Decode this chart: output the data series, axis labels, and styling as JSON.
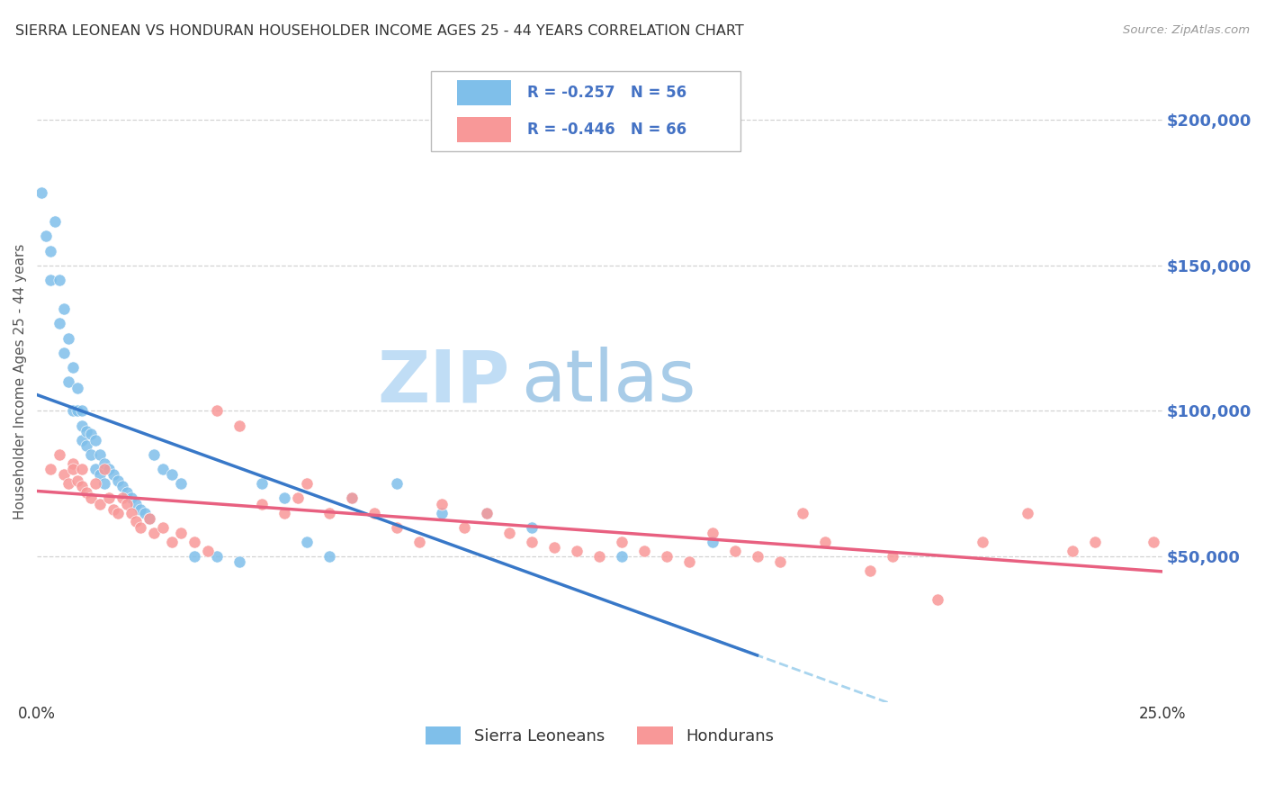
{
  "title": "SIERRA LEONEAN VS HONDURAN HOUSEHOLDER INCOME AGES 25 - 44 YEARS CORRELATION CHART",
  "source": "Source: ZipAtlas.com",
  "ylabel": "Householder Income Ages 25 - 44 years",
  "background_color": "#ffffff",
  "grid_color": "#c8c8c8",
  "title_color": "#333333",
  "sierra_color": "#7fbfea",
  "honduran_color": "#f89898",
  "sierra_line_color": "#3878c8",
  "honduran_line_color": "#e86080",
  "dashed_line_color": "#a8d4ee",
  "axis_label_color": "#4472c4",
  "xlim": [
    0.0,
    0.25
  ],
  "ylim": [
    0,
    220000
  ],
  "watermark_text1": "ZIP",
  "watermark_text2": "atlas",
  "watermark_color1": "#b8d8f0",
  "watermark_color2": "#a0c8e8",
  "sierra_R": -0.257,
  "sierra_N": 56,
  "honduran_R": -0.446,
  "honduran_N": 66,
  "sl_x": [
    0.001,
    0.002,
    0.003,
    0.003,
    0.004,
    0.005,
    0.005,
    0.006,
    0.006,
    0.007,
    0.007,
    0.008,
    0.008,
    0.009,
    0.009,
    0.01,
    0.01,
    0.01,
    0.011,
    0.011,
    0.012,
    0.012,
    0.013,
    0.013,
    0.014,
    0.014,
    0.015,
    0.015,
    0.016,
    0.017,
    0.018,
    0.019,
    0.02,
    0.021,
    0.022,
    0.023,
    0.024,
    0.025,
    0.026,
    0.028,
    0.03,
    0.032,
    0.035,
    0.04,
    0.045,
    0.05,
    0.055,
    0.06,
    0.065,
    0.07,
    0.08,
    0.09,
    0.1,
    0.11,
    0.13,
    0.15
  ],
  "sl_y": [
    175000,
    160000,
    155000,
    145000,
    165000,
    130000,
    145000,
    120000,
    135000,
    110000,
    125000,
    100000,
    115000,
    100000,
    108000,
    95000,
    100000,
    90000,
    93000,
    88000,
    92000,
    85000,
    90000,
    80000,
    85000,
    78000,
    82000,
    75000,
    80000,
    78000,
    76000,
    74000,
    72000,
    70000,
    68000,
    66000,
    65000,
    63000,
    85000,
    80000,
    78000,
    75000,
    50000,
    50000,
    48000,
    75000,
    70000,
    55000,
    50000,
    70000,
    75000,
    65000,
    65000,
    60000,
    50000,
    55000
  ],
  "hn_x": [
    0.003,
    0.005,
    0.006,
    0.007,
    0.008,
    0.008,
    0.009,
    0.01,
    0.01,
    0.011,
    0.012,
    0.013,
    0.014,
    0.015,
    0.016,
    0.017,
    0.018,
    0.019,
    0.02,
    0.021,
    0.022,
    0.023,
    0.025,
    0.026,
    0.028,
    0.03,
    0.032,
    0.035,
    0.038,
    0.04,
    0.045,
    0.05,
    0.055,
    0.058,
    0.06,
    0.065,
    0.07,
    0.075,
    0.08,
    0.085,
    0.09,
    0.095,
    0.1,
    0.105,
    0.11,
    0.115,
    0.12,
    0.125,
    0.13,
    0.135,
    0.14,
    0.145,
    0.15,
    0.155,
    0.16,
    0.165,
    0.17,
    0.175,
    0.185,
    0.19,
    0.2,
    0.21,
    0.22,
    0.23,
    0.235,
    0.248
  ],
  "hn_y": [
    80000,
    85000,
    78000,
    75000,
    82000,
    80000,
    76000,
    80000,
    74000,
    72000,
    70000,
    75000,
    68000,
    80000,
    70000,
    66000,
    65000,
    70000,
    68000,
    65000,
    62000,
    60000,
    63000,
    58000,
    60000,
    55000,
    58000,
    55000,
    52000,
    100000,
    95000,
    68000,
    65000,
    70000,
    75000,
    65000,
    70000,
    65000,
    60000,
    55000,
    68000,
    60000,
    65000,
    58000,
    55000,
    53000,
    52000,
    50000,
    55000,
    52000,
    50000,
    48000,
    58000,
    52000,
    50000,
    48000,
    65000,
    55000,
    45000,
    50000,
    35000,
    55000,
    65000,
    52000,
    55000,
    55000
  ]
}
